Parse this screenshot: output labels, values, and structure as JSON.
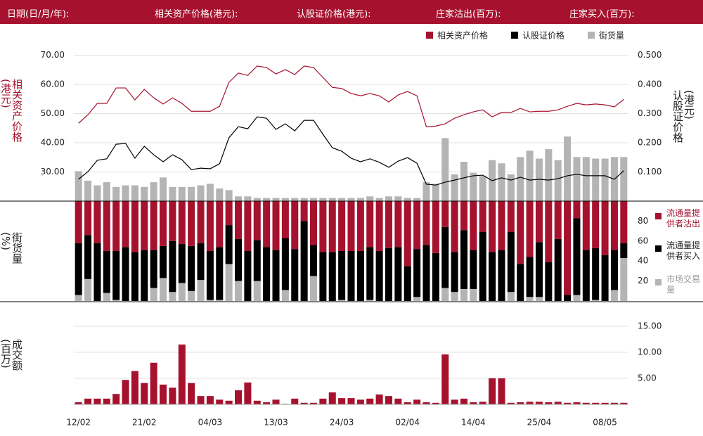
{
  "header": {
    "labels": [
      "日期(日/月/年):",
      "相关资产价格(港元):",
      "认股证价格(港元):",
      "庄家沽出(百万):",
      "庄家买入(百万):"
    ]
  },
  "chart_data": [
    {
      "type": "line",
      "ylabel": "相关资产价格(港元)",
      "y2label": "认股证价格(港元)",
      "ylim": [
        20,
        74
      ],
      "yticks": [
        {
          "value": 30,
          "label": "30.00"
        },
        {
          "value": 40,
          "label": "40.00"
        },
        {
          "value": 50,
          "label": "50.00"
        },
        {
          "value": 60,
          "label": "60.00"
        },
        {
          "value": 70,
          "label": "70.00"
        }
      ],
      "y2lim": [
        0,
        0.54
      ],
      "y2ticks": [
        {
          "value": 0.1,
          "label": "0.100"
        },
        {
          "value": 0.2,
          "label": "0.200"
        },
        {
          "value": 0.3,
          "label": "0.300"
        },
        {
          "value": 0.4,
          "label": "0.400"
        },
        {
          "value": 0.5,
          "label": "0.500"
        }
      ],
      "y3lim": [
        0,
        100
      ],
      "grid": true,
      "legend": "top-right",
      "series": [
        {
          "name": "相关资产价格",
          "color": "#a6122e",
          "values": [
            46.7,
            49.6,
            53.5,
            53.5,
            58.8,
            58.8,
            54.7,
            58.3,
            55.4,
            53.3,
            55.4,
            53.5,
            50.8,
            50.8,
            50.8,
            52.5,
            60.7,
            63.9,
            63.1,
            66.3,
            65.8,
            63.6,
            65.1,
            63.4,
            66.3,
            65.8,
            62.4,
            59.0,
            58.6,
            56.9,
            56.1,
            56.9,
            56.1,
            54.0,
            56.4,
            57.6,
            56.1,
            45.5,
            45.7,
            46.5,
            48.4,
            49.6,
            50.6,
            51.3,
            48.9,
            50.4,
            50.4,
            51.8,
            50.6,
            50.8,
            50.8,
            51.3,
            52.5,
            53.5,
            53.0,
            53.3,
            53.0,
            52.3,
            54.9
          ]
        },
        {
          "name": "认股证价格",
          "color": "#000000",
          "axis": "y2",
          "values": [
            0.075,
            0.101,
            0.14,
            0.145,
            0.195,
            0.198,
            0.147,
            0.188,
            0.159,
            0.135,
            0.159,
            0.142,
            0.108,
            0.113,
            0.111,
            0.128,
            0.217,
            0.255,
            0.248,
            0.289,
            0.284,
            0.246,
            0.265,
            0.241,
            0.277,
            0.277,
            0.229,
            0.183,
            0.171,
            0.147,
            0.135,
            0.145,
            0.133,
            0.116,
            0.137,
            0.149,
            0.13,
            0.058,
            0.055,
            0.065,
            0.072,
            0.08,
            0.087,
            0.089,
            0.07,
            0.08,
            0.072,
            0.082,
            0.072,
            0.075,
            0.072,
            0.077,
            0.087,
            0.092,
            0.087,
            0.087,
            0.087,
            0.075,
            0.104
          ]
        },
        {
          "name": "街货量",
          "color": "#b4b4b4",
          "kind": "bar",
          "axis": "y3",
          "values": [
            19,
            13,
            10,
            12,
            9,
            10,
            10,
            9,
            12,
            15,
            9,
            9,
            9,
            10,
            11,
            8,
            7,
            3,
            3,
            2,
            2,
            2,
            2,
            2,
            2,
            2,
            2,
            2,
            2,
            2,
            2,
            3,
            2,
            3,
            3,
            2,
            2,
            12,
            11,
            40,
            17,
            25,
            18,
            16,
            26,
            24,
            17,
            28,
            32,
            27,
            33,
            26,
            41,
            28,
            28,
            27,
            27,
            28,
            28
          ]
        }
      ]
    },
    {
      "type": "stacked_bar",
      "ylabel": "街货量(%)",
      "ylim": [
        0,
        100
      ],
      "yticks": [
        20,
        40,
        60,
        80
      ],
      "legend": "right",
      "series": [
        {
          "name": "流通量提供者沽出",
          "color": "#a6122e",
          "values": [
            42,
            34,
            42,
            50,
            50,
            46,
            51,
            49,
            49,
            45,
            40,
            43,
            45,
            42,
            50,
            46,
            24,
            38,
            50,
            39,
            46,
            49,
            37,
            48,
            20,
            44,
            51,
            51,
            50,
            50,
            50,
            46,
            50,
            47,
            46,
            65,
            48,
            44,
            52,
            26,
            51,
            29,
            49,
            31,
            51,
            49,
            31,
            63,
            56,
            41,
            61,
            38,
            94,
            17,
            49,
            47,
            54,
            49,
            42
          ]
        },
        {
          "name": "流通量提供者买入",
          "color": "#000000",
          "values": [
            52,
            44,
            58,
            42,
            49,
            54,
            49,
            51,
            38,
            32,
            51,
            39,
            45,
            37,
            49,
            53,
            39,
            42,
            50,
            41,
            54,
            51,
            52,
            52,
            80,
            31,
            49,
            49,
            49,
            50,
            50,
            53,
            50,
            53,
            54,
            35,
            48,
            56,
            48,
            61,
            40,
            59,
            39,
            69,
            49,
            51,
            60,
            37,
            40,
            55,
            39,
            62,
            6,
            77,
            51,
            52,
            46,
            40,
            15
          ]
        },
        {
          "name": "市场交易量",
          "color": "#b4b4b4",
          "values": [
            6,
            22,
            0,
            8,
            1,
            0,
            0,
            0,
            13,
            23,
            9,
            18,
            10,
            21,
            1,
            1,
            37,
            20,
            0,
            20,
            0,
            0,
            11,
            0,
            0,
            25,
            0,
            0,
            1,
            0,
            0,
            1,
            0,
            0,
            0,
            0,
            4,
            0,
            0,
            13,
            9,
            12,
            12,
            0,
            0,
            0,
            9,
            0,
            4,
            4,
            0,
            0,
            0,
            6,
            0,
            1,
            0,
            11,
            43
          ]
        }
      ]
    },
    {
      "type": "bar",
      "ylabel": "成交额(百万)",
      "color": "#a6122e",
      "grid": true,
      "ylim": [
        0,
        16
      ],
      "yticks": [
        {
          "value": 5,
          "label": "5.00"
        },
        {
          "value": 10,
          "label": "10.00"
        },
        {
          "value": 15,
          "label": "15.00"
        }
      ],
      "categories": [
        "12/02",
        null,
        null,
        null,
        null,
        null,
        null,
        "21/02",
        null,
        null,
        null,
        null,
        null,
        null,
        "04/03",
        null,
        null,
        null,
        null,
        null,
        null,
        "13/03",
        null,
        null,
        null,
        null,
        null,
        null,
        "24/03",
        null,
        null,
        null,
        null,
        null,
        null,
        "02/04",
        null,
        null,
        null,
        null,
        null,
        null,
        "14/04",
        null,
        null,
        null,
        null,
        null,
        null,
        "25/04",
        null,
        null,
        null,
        null,
        null,
        null,
        "08/05",
        null,
        null
      ],
      "values": [
        0.4,
        1.1,
        1.1,
        1.1,
        2.0,
        4.7,
        6.4,
        4.1,
        8.0,
        3.8,
        3.2,
        11.5,
        4.1,
        1.6,
        1.6,
        0.9,
        0.7,
        2.7,
        4.2,
        0.7,
        0.4,
        0.9,
        0.1,
        1.1,
        0.3,
        0.3,
        1.1,
        2.3,
        1.2,
        1.2,
        0.9,
        1.1,
        1.9,
        1.6,
        1.1,
        0.4,
        0.9,
        0.4,
        0.3,
        9.6,
        0.9,
        1.1,
        0.4,
        0.5,
        5.0,
        5.0,
        0.3,
        0.4,
        0.5,
        0.5,
        0.4,
        0.5,
        0.3,
        0.4,
        0.3,
        0.3,
        0.3,
        0.3,
        0.3
      ]
    }
  ]
}
